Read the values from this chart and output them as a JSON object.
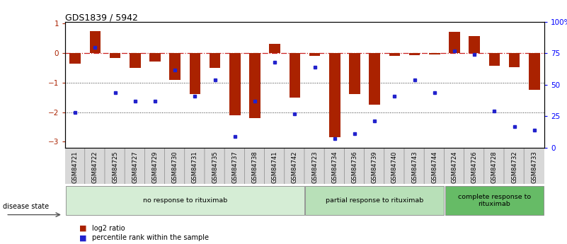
{
  "title": "GDS1839 / 5942",
  "samples": [
    "GSM84721",
    "GSM84722",
    "GSM84725",
    "GSM84727",
    "GSM84729",
    "GSM84730",
    "GSM84731",
    "GSM84735",
    "GSM84737",
    "GSM84738",
    "GSM84741",
    "GSM84742",
    "GSM84723",
    "GSM84734",
    "GSM84736",
    "GSM84739",
    "GSM84740",
    "GSM84743",
    "GSM84744",
    "GSM84724",
    "GSM84726",
    "GSM84728",
    "GSM84732",
    "GSM84733"
  ],
  "log2_ratio": [
    -0.35,
    0.75,
    -0.18,
    -0.5,
    -0.3,
    -0.9,
    -1.4,
    -0.5,
    -2.1,
    -2.2,
    0.32,
    -1.5,
    -0.1,
    -2.85,
    -1.4,
    -1.75,
    -0.1,
    -0.08,
    -0.05,
    0.72,
    0.58,
    -0.42,
    -0.48,
    -1.25
  ],
  "percentile": [
    28,
    80,
    44,
    37,
    37,
    62,
    41,
    54,
    9,
    37,
    68,
    27,
    64,
    7,
    11,
    21,
    41,
    54,
    44,
    77,
    74,
    29,
    17,
    14
  ],
  "groups": [
    {
      "label": "no response to rituximab",
      "start": 0,
      "end": 12,
      "color": "#d5edd5"
    },
    {
      "label": "partial response to rituximab",
      "start": 12,
      "end": 19,
      "color": "#b8e0b8"
    },
    {
      "label": "complete response to\nrituximab",
      "start": 19,
      "end": 24,
      "color": "#66bb66"
    }
  ],
  "bar_color": "#aa2200",
  "dot_color": "#2222cc",
  "zero_line_color": "#cc2222",
  "dot_line_color": "#000000",
  "bg_color": "#ffffff",
  "ylim_left": [
    -3.2,
    1.05
  ],
  "ylim_right": [
    0,
    100
  ],
  "yticks_left": [
    1,
    0,
    -1,
    -2,
    -3
  ],
  "ytick_labels_right": [
    "100%",
    "75",
    "50",
    "25",
    "0"
  ],
  "yticks_right_vals": [
    100,
    75,
    50,
    25,
    0
  ],
  "legend_labels": [
    "log2 ratio",
    "percentile rank within the sample"
  ],
  "legend_colors": [
    "#aa2200",
    "#2222cc"
  ]
}
